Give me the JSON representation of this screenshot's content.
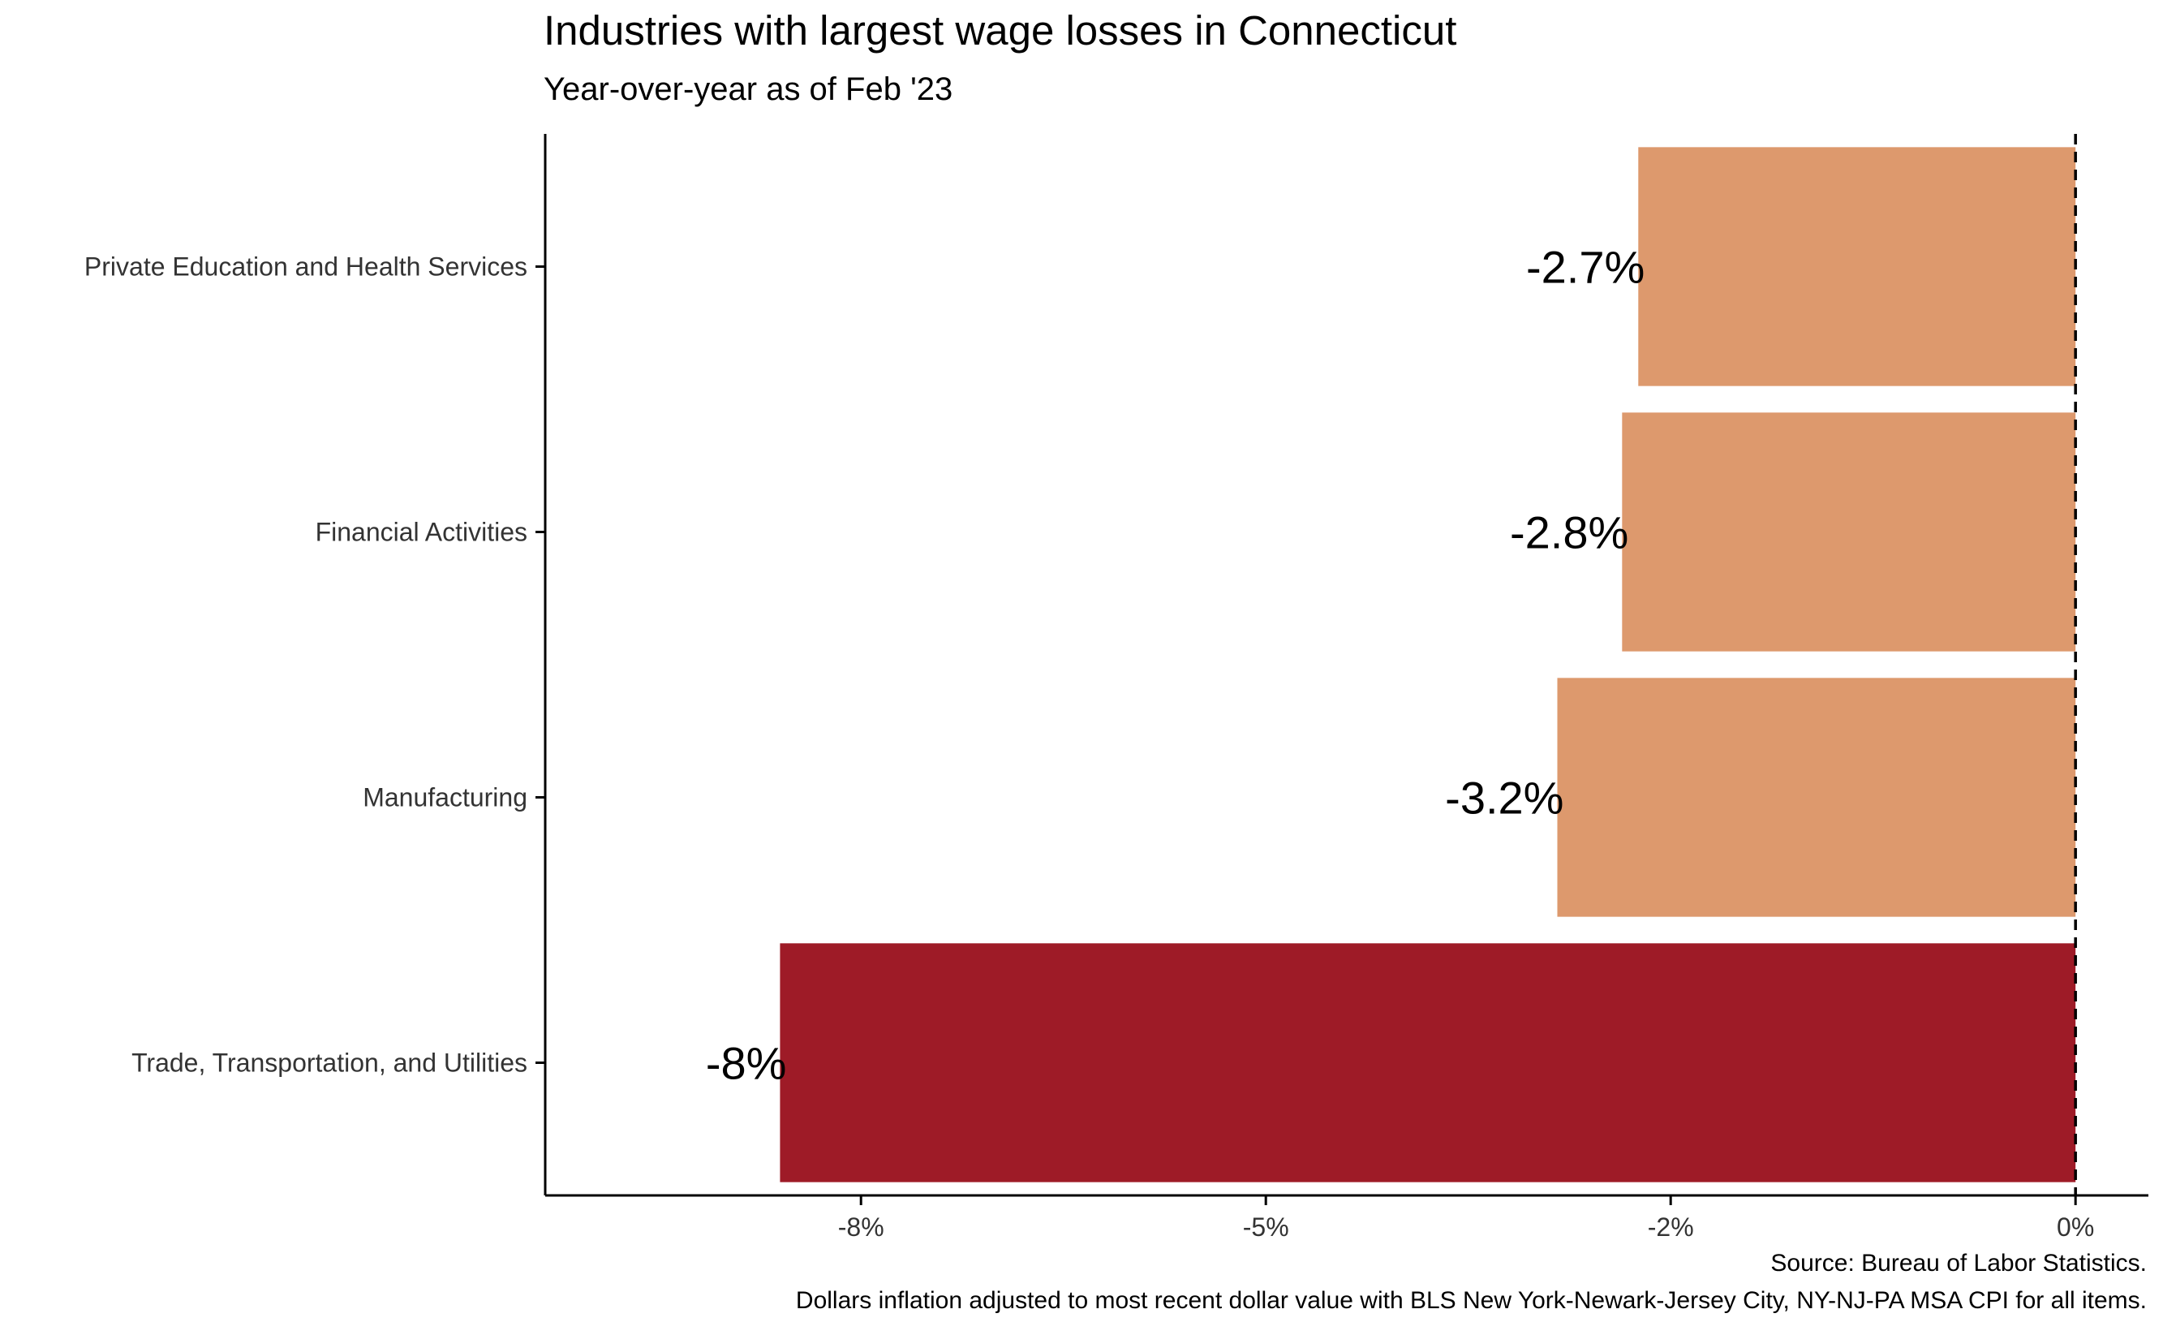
{
  "chart_data": {
    "type": "bar",
    "orientation": "horizontal",
    "title": "Industries with largest wage losses in Connecticut",
    "subtitle": "Year-over-year as of Feb '23",
    "caption_lines": [
      "Source: Bureau of Labor Statistics.",
      "Dollars inflation adjusted to most recent dollar value with BLS New York-Newark-Jersey City, NY-NJ-PA MSA CPI for all items."
    ],
    "categories": [
      "Private Education and Health Services",
      "Financial Activities",
      "Manufacturing",
      "Trade, Transportation, and Utilities"
    ],
    "values": [
      -2.7,
      -2.8,
      -3.2,
      -8.0
    ],
    "labels": [
      "-2.7%",
      "-2.8%",
      "-3.2%",
      "-8%"
    ],
    "colors": [
      "#dd996d",
      "#dd996d",
      "#dd996d",
      "#9e1b27"
    ],
    "xlim": [
      -9.45,
      0.45
    ],
    "xticks": [
      -7.5,
      -5,
      -2.5,
      0
    ],
    "xtick_labels": [
      "-8%",
      "-5%",
      "-2%",
      "0%"
    ],
    "reference_line": 0,
    "grid": false
  }
}
